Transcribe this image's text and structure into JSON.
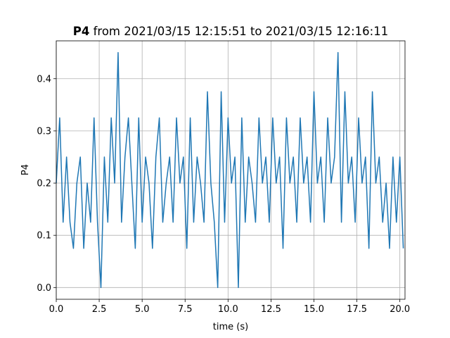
{
  "chart_data": {
    "type": "line",
    "title": {
      "bold": "P4",
      "text": "from 2021/03/15 12:15:51 to 2021/03/15 12:16:11"
    },
    "xlabel": "time (s)",
    "ylabel": "P4",
    "x": [
      0.0,
      0.2,
      0.4,
      0.6,
      0.8,
      1.0,
      1.2,
      1.4,
      1.6,
      1.8,
      2.0,
      2.2,
      2.4,
      2.6,
      2.8,
      3.0,
      3.2,
      3.4,
      3.6,
      3.8,
      4.0,
      4.2,
      4.4,
      4.6,
      4.8,
      5.0,
      5.2,
      5.4,
      5.6,
      5.8,
      6.0,
      6.2,
      6.4,
      6.6,
      6.8,
      7.0,
      7.2,
      7.4,
      7.6,
      7.8,
      8.0,
      8.2,
      8.4,
      8.6,
      8.8,
      9.0,
      9.2,
      9.4,
      9.6,
      9.8,
      10.0,
      10.2,
      10.4,
      10.6,
      10.8,
      11.0,
      11.2,
      11.4,
      11.6,
      11.8,
      12.0,
      12.2,
      12.4,
      12.6,
      12.8,
      13.0,
      13.2,
      13.4,
      13.6,
      13.8,
      14.0,
      14.2,
      14.4,
      14.6,
      14.8,
      15.0,
      15.2,
      15.4,
      15.6,
      15.8,
      16.0,
      16.2,
      16.4,
      16.6,
      16.8,
      17.0,
      17.2,
      17.4,
      17.6,
      17.8,
      18.0,
      18.2,
      18.4,
      18.6,
      18.8,
      19.0,
      19.2,
      19.4,
      19.6,
      19.8,
      20.0,
      20.2
    ],
    "series": [
      {
        "name": "P4",
        "color": "#1f77b4",
        "values": [
          0.2,
          0.325,
          0.125,
          0.25,
          0.125,
          0.075,
          0.2,
          0.25,
          0.075,
          0.2,
          0.125,
          0.325,
          0.125,
          0,
          0.25,
          0.125,
          0.325,
          0.2,
          0.45,
          0.125,
          0.25,
          0.325,
          0.2,
          0.075,
          0.325,
          0.125,
          0.25,
          0.2,
          0.075,
          0.25,
          0.325,
          0.125,
          0.2,
          0.25,
          0.125,
          0.325,
          0.2,
          0.25,
          0.075,
          0.325,
          0.125,
          0.25,
          0.2,
          0.125,
          0.375,
          0.2,
          0.125,
          0,
          0.375,
          0.125,
          0.325,
          0.2,
          0.25,
          0,
          0.325,
          0.125,
          0.25,
          0.2,
          0.125,
          0.325,
          0.2,
          0.25,
          0.125,
          0.325,
          0.2,
          0.25,
          0.075,
          0.325,
          0.2,
          0.25,
          0.125,
          0.325,
          0.2,
          0.25,
          0.125,
          0.375,
          0.2,
          0.25,
          0.125,
          0.325,
          0.2,
          0.25,
          0.45,
          0.125,
          0.375,
          0.2,
          0.25,
          0.125,
          0.325,
          0.2,
          0.25,
          0.075,
          0.375,
          0.2,
          0.25,
          0.125,
          0.2,
          0.075,
          0.25,
          0.125,
          0.25,
          0.075
        ]
      }
    ],
    "xlim": [
      0,
      20.3
    ],
    "ylim": [
      -0.0225,
      0.4725
    ],
    "xticks": [
      {
        "value": 0,
        "label": "0.0"
      },
      2.5,
      {
        "value": 5,
        "label": "5.0"
      },
      7.5,
      {
        "value": 10,
        "label": "10.0"
      },
      12.5,
      {
        "value": 15,
        "label": "15.0"
      },
      17.5,
      {
        "value": 20,
        "label": "20.0"
      }
    ],
    "yticks": [
      {
        "value": 0,
        "label": "0.0"
      },
      0.1,
      0.2,
      0.3,
      0.4
    ],
    "grid": true
  }
}
